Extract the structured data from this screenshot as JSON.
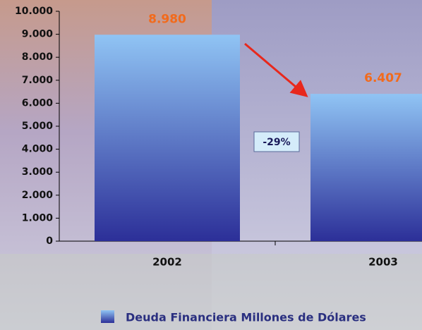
{
  "chart_data": {
    "type": "bar",
    "categories": [
      "2002",
      "2003"
    ],
    "series": [
      {
        "name": "Deuda Financiera Millones de Dólares",
        "color": "#3a48b8",
        "values": [
          8980,
          6407
        ],
        "value_labels": [
          "8.980",
          "6.407"
        ]
      }
    ],
    "ylim": [
      0,
      10000
    ],
    "yticks": [
      0,
      {
        "value": 1000,
        "label": "1.000"
      },
      {
        "value": 2000,
        "label": "2.000"
      },
      {
        "value": 3000,
        "label": "3.000"
      },
      {
        "value": 4000,
        "label": "4.000"
      },
      {
        "value": 5000,
        "label": "5.000"
      },
      {
        "value": 6000,
        "label": "6.000"
      },
      {
        "value": 7000,
        "label": "7.000"
      },
      {
        "value": 8000,
        "label": "8.000"
      },
      {
        "value": 9000,
        "label": "9.000"
      },
      {
        "value": 10000,
        "label": "10.000"
      }
    ],
    "annotation": "-29%"
  }
}
